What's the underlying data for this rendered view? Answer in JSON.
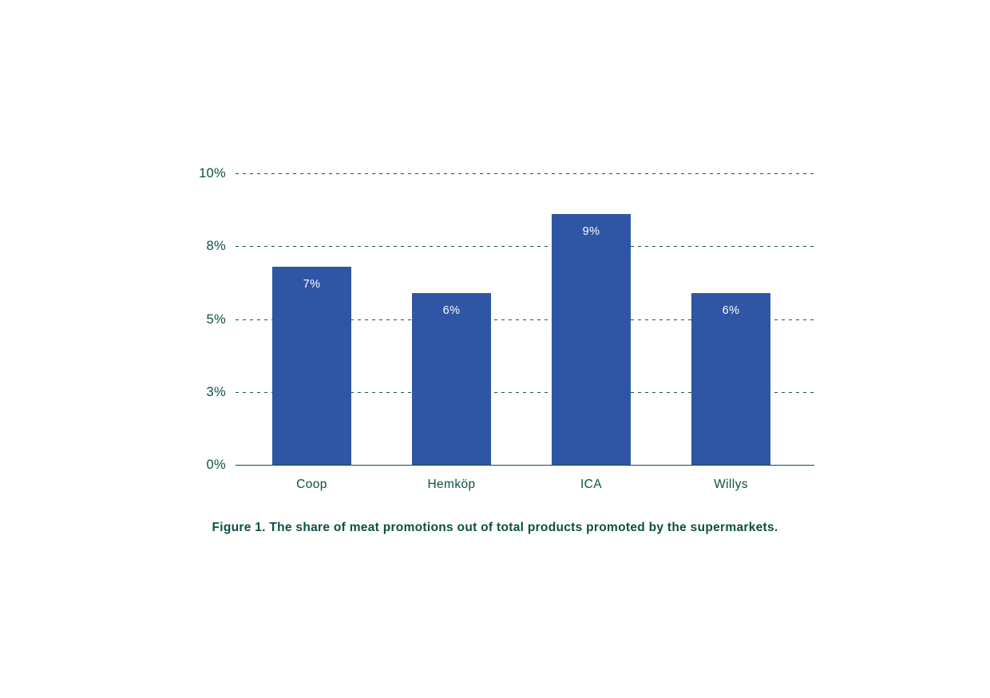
{
  "chart_data": {
    "type": "bar",
    "categories": [
      "Coop",
      "Hemköp",
      "ICA",
      "Willys"
    ],
    "values": [
      6.8,
      5.9,
      8.6,
      5.9
    ],
    "value_labels": [
      "7%",
      "6%",
      "9%",
      "6%"
    ],
    "yticks": [
      {
        "value": 0,
        "label": "0%"
      },
      {
        "value": 2.5,
        "label": "3%"
      },
      {
        "value": 5,
        "label": "5%"
      },
      {
        "value": 7.5,
        "label": "8%"
      },
      {
        "value": 10,
        "label": "10%"
      }
    ],
    "ylim": [
      0,
      10
    ],
    "grid": "dashed horizontal",
    "legend": "none",
    "bar_color": "#2e56a4",
    "text_color": "#0d4f45",
    "grid_color": "#1a5a50",
    "bar_label_color": "#ffffff",
    "caption": "Figure 1. The share of meat promotions out of total products promoted by the supermarkets."
  }
}
